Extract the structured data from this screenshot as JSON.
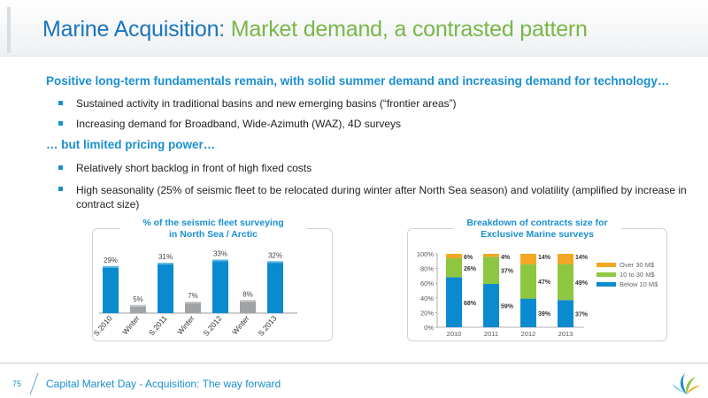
{
  "title": {
    "part1": "Marine Acquisition:",
    "part2": "Market demand, a contrasted pattern"
  },
  "section1": {
    "heading": "Positive long-term fundamentals remain, with solid summer demand and increasing demand for technology…",
    "bullets": [
      "Sustained activity in traditional basins and new emerging basins (“frontier areas”)",
      "Increasing demand for Broadband, Wide-Azimuth (WAZ), 4D surveys"
    ]
  },
  "section2": {
    "heading": "… but limited pricing power…",
    "bullets": [
      "Relatively short backlog in front of high fixed costs",
      "High seasonality (25% of seismic fleet to be relocated during winter after North Sea season) and volatility (amplified by increase in contract size)"
    ]
  },
  "colors": {
    "blue": "#0a8bd0",
    "gray": "#a0a3a6",
    "green": "#8dc641",
    "orange": "#f5a623",
    "accent": "#1a8fd0",
    "title_green": "#7ab648"
  },
  "chart_data": [
    {
      "type": "bar",
      "title": "% of the seismic fleet surveying in North Sea / Arctic",
      "title_lines": [
        "% of the seismic fleet surveying",
        "in North Sea / Arctic"
      ],
      "categories": [
        "S.2010",
        "Winter",
        "S.2011",
        "Winter",
        "S.2012",
        "Winter",
        "S.2013"
      ],
      "values": [
        29,
        5,
        31,
        7,
        33,
        8,
        32
      ],
      "labels": [
        "29%",
        "5%",
        "31%",
        "7%",
        "33%",
        "8%",
        "32%"
      ],
      "bar_colors": [
        "blue",
        "gray",
        "blue",
        "gray",
        "blue",
        "gray",
        "blue"
      ],
      "ylim": [
        0,
        36
      ]
    },
    {
      "type": "bar",
      "stacked": true,
      "title": "Breakdown of contracts size for Exclusive Marine surveys",
      "title_lines": [
        "Breakdown of contracts size for",
        "Exclusive Marine surveys"
      ],
      "categories": [
        "2010",
        "2011",
        "2012",
        "2013"
      ],
      "yticks": [
        "0%",
        "20%",
        "40%",
        "60%",
        "80%",
        "100%"
      ],
      "ylim": [
        0,
        100
      ],
      "series": [
        {
          "name": "Below 10 M$",
          "color": "blue",
          "values": [
            68,
            59,
            39,
            37
          ],
          "labels": [
            "68%",
            "59%",
            "39%",
            "37%"
          ]
        },
        {
          "name": "10 to 30 M$",
          "color": "green",
          "values": [
            26,
            37,
            47,
            49
          ],
          "labels": [
            "26%",
            "37%",
            "47%",
            "49%"
          ]
        },
        {
          "name": "Over 30 M$",
          "color": "orange",
          "values": [
            6,
            4,
            14,
            14
          ],
          "labels": [
            "6%",
            "4%",
            "14%",
            "14%"
          ]
        }
      ],
      "legend_order": [
        "Over 30 M$",
        "10 to 30 M$",
        "Below 10 M$"
      ],
      "legend_position": "right"
    }
  ],
  "footer": {
    "page_number": "75",
    "text": "Capital Market Day - Acquisition: The way forward"
  },
  "logo_icon": "cgg-logo-icon"
}
